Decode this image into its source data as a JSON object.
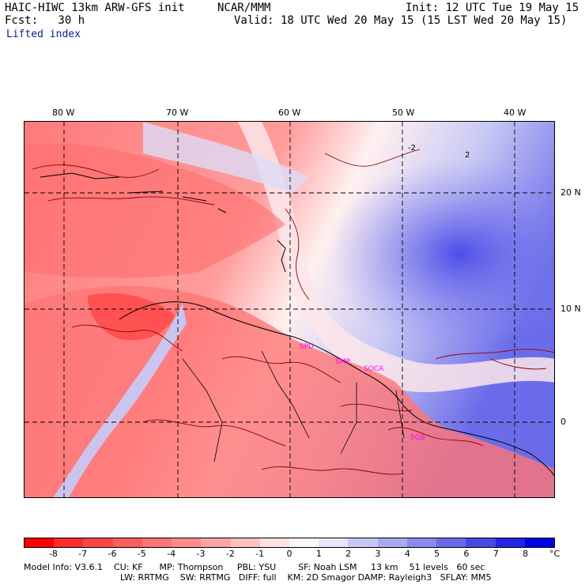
{
  "header": {
    "model_title": "HAIC-HIWC 13km ARW-GFS init",
    "org": "NCAR/MMM",
    "init": "Init: 12 UTC Tue 19 May 15",
    "fcst": "Fcst:   30 h",
    "valid": "Valid: 18 UTC Wed 20 May 15 (15 LST Wed 20 May 15)",
    "field": "Lifted index"
  },
  "map": {
    "lon_labels": [
      "80 W",
      "70 W",
      "60 W",
      "50 W",
      "40 W"
    ],
    "lat_labels": [
      "20 N",
      "10 N",
      "0"
    ],
    "stations": [
      "SPU",
      "SMP",
      "SOCA",
      "SGB"
    ],
    "contour_labels": [
      "-2",
      "2"
    ]
  },
  "colorbar": {
    "labels": [
      "-8",
      "-7",
      "-6",
      "-5",
      "-4",
      "-3",
      "-2",
      "-1",
      "0",
      "1",
      "2",
      "3",
      "4",
      "5",
      "6",
      "7",
      "8"
    ],
    "unit": "°C",
    "colors": [
      "#ff0000",
      "#ff2a2a",
      "#ff4646",
      "#ff5e5e",
      "#ff7474",
      "#ff8a8a",
      "#ffa4a4",
      "#ffc2c2",
      "#ffe2e2",
      "#fdf6f6",
      "#e6e6fb",
      "#c8c8f6",
      "#aaaaf1",
      "#8a8aee",
      "#6a6aeb",
      "#4848e8",
      "#2424e6",
      "#0000e4"
    ]
  },
  "model_info": {
    "line1": "Model Info: V3.6.1    CU: KF      MP: Thompson     PBL: YSU        SF: Noah LSM     13 km    51 levels   60 sec",
    "line2": "LW: RRTMG    SW: RRTMG   DIFF: full    KM: 2D Smagor DAMP: Rayleigh3   SFLAY: MM5"
  }
}
